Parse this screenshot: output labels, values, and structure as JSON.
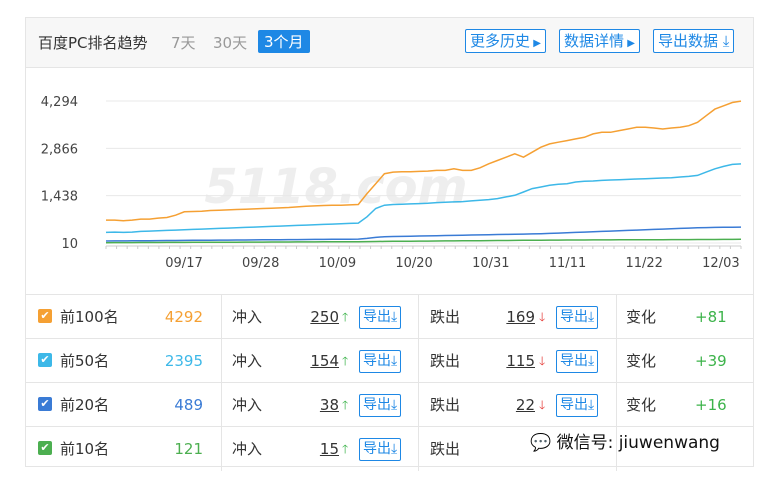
{
  "header": {
    "title": "百度PC排名趋势",
    "periods": [
      "7天",
      "30天",
      "3个月"
    ],
    "buttons": {
      "history": "更多历史",
      "details": "数据详情",
      "export": "导出数据"
    }
  },
  "chart_data": {
    "type": "line",
    "x_tick_labels": [
      "09/17",
      "09/28",
      "10/09",
      "10/20",
      "10/31",
      "11/11",
      "11/22",
      "12/03"
    ],
    "y_tick_labels": [
      "4,294",
      "2,866",
      "1,438",
      "10"
    ],
    "ylim": [
      10,
      4294
    ],
    "grid": true,
    "watermark": "5118.com",
    "series": [
      {
        "name": "前100名",
        "color": "#f5a033",
        "values": [
          700,
          700,
          680,
          700,
          730,
          730,
          760,
          780,
          850,
          950,
          960,
          970,
          990,
          1000,
          1010,
          1020,
          1030,
          1040,
          1050,
          1060,
          1070,
          1080,
          1100,
          1120,
          1130,
          1140,
          1150,
          1150,
          1160,
          1170,
          1500,
          1800,
          2100,
          2150,
          2160,
          2160,
          2170,
          2180,
          2200,
          2200,
          2250,
          2200,
          2200,
          2280,
          2400,
          2500,
          2600,
          2700,
          2600,
          2750,
          2900,
          3000,
          3050,
          3100,
          3150,
          3200,
          3300,
          3350,
          3350,
          3400,
          3450,
          3500,
          3500,
          3480,
          3450,
          3480,
          3500,
          3550,
          3650,
          3850,
          4050,
          4150,
          4250,
          4292
        ]
      },
      {
        "name": "前50名",
        "color": "#3db8e8",
        "values": [
          330,
          340,
          330,
          340,
          360,
          370,
          380,
          390,
          400,
          410,
          420,
          430,
          440,
          450,
          460,
          470,
          480,
          490,
          500,
          510,
          520,
          530,
          540,
          550,
          560,
          570,
          580,
          590,
          600,
          610,
          800,
          1050,
          1150,
          1170,
          1180,
          1190,
          1200,
          1210,
          1230,
          1240,
          1250,
          1260,
          1280,
          1300,
          1320,
          1350,
          1400,
          1450,
          1550,
          1650,
          1700,
          1750,
          1780,
          1800,
          1850,
          1870,
          1880,
          1900,
          1910,
          1920,
          1930,
          1940,
          1950,
          1960,
          1970,
          1980,
          2000,
          2020,
          2050,
          2150,
          2250,
          2320,
          2380,
          2395
        ]
      },
      {
        "name": "前20名",
        "color": "#3a7bd5",
        "values": [
          70,
          72,
          74,
          76,
          78,
          80,
          82,
          84,
          86,
          88,
          90,
          92,
          94,
          96,
          98,
          100,
          102,
          104,
          106,
          108,
          110,
          112,
          114,
          116,
          118,
          120,
          122,
          124,
          126,
          128,
          150,
          180,
          200,
          205,
          210,
          215,
          220,
          225,
          230,
          235,
          240,
          245,
          250,
          255,
          260,
          265,
          270,
          275,
          280,
          285,
          290,
          300,
          310,
          320,
          330,
          340,
          350,
          360,
          370,
          380,
          390,
          400,
          410,
          420,
          430,
          440,
          450,
          460,
          470,
          475,
          480,
          485,
          488,
          489
        ]
      },
      {
        "name": "前10名",
        "color": "#4caf50",
        "values": [
          20,
          21,
          22,
          23,
          24,
          25,
          26,
          27,
          28,
          29,
          30,
          31,
          32,
          33,
          34,
          35,
          36,
          37,
          38,
          39,
          40,
          41,
          42,
          43,
          44,
          45,
          46,
          47,
          48,
          49,
          52,
          55,
          58,
          60,
          62,
          64,
          66,
          68,
          70,
          72,
          74,
          76,
          78,
          80,
          82,
          84,
          86,
          88,
          90,
          92,
          94,
          96,
          98,
          100,
          101,
          102,
          103,
          104,
          105,
          106,
          107,
          108,
          109,
          110,
          111,
          112,
          113,
          114,
          115,
          116,
          117,
          118,
          120,
          121
        ]
      }
    ]
  },
  "rows": [
    {
      "label": "前100名",
      "color": "#f5a033",
      "count": "4292",
      "in_label": "冲入",
      "in_val": "250",
      "out_label": "跌出",
      "out_val": "169",
      "change_label": "变化",
      "change": "+81",
      "export": "导出"
    },
    {
      "label": "前50名",
      "color": "#3db8e8",
      "count": "2395",
      "in_label": "冲入",
      "in_val": "154",
      "out_label": "跌出",
      "out_val": "115",
      "change_label": "变化",
      "change": "+39",
      "export": "导出"
    },
    {
      "label": "前20名",
      "color": "#3a7bd5",
      "count": "489",
      "in_label": "冲入",
      "in_val": "38",
      "out_label": "跌出",
      "out_val": "22",
      "change_label": "变化",
      "change": "+16",
      "export": "导出"
    },
    {
      "label": "前10名",
      "color": "#4caf50",
      "count": "121",
      "in_label": "冲入",
      "in_val": "15",
      "out_label": "跌出",
      "out_val": "",
      "change_label": "",
      "change": "",
      "export": "导出"
    }
  ],
  "watermark_text": "微信号: jiuwenwang"
}
